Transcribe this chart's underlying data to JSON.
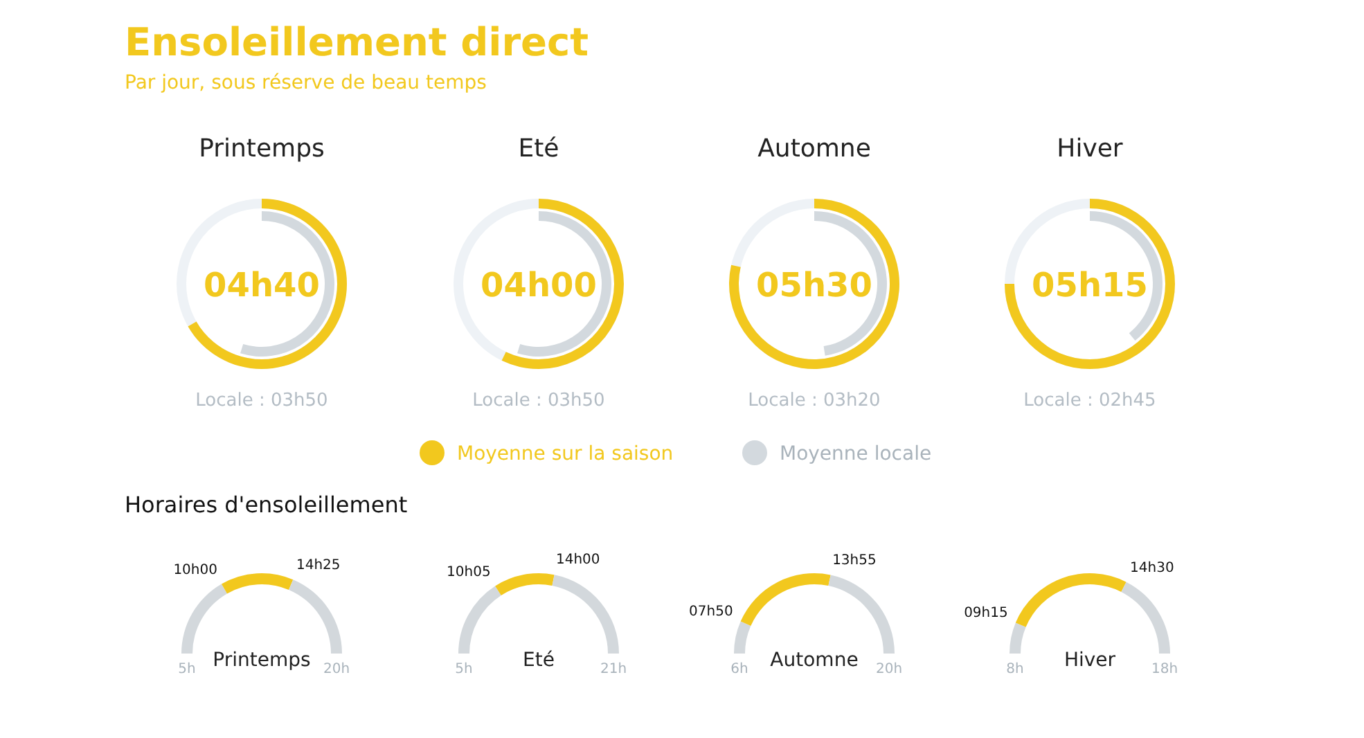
{
  "chart_data": [
    {
      "type": "other",
      "title": "Ensoleillement direct",
      "subtitle": "Par jour, sous réserve de beau temps",
      "legend": "bottom",
      "series": [
        {
          "name": "Moyenne sur la saison",
          "color": "#f2c81e"
        },
        {
          "name": "Moyenne locale",
          "color": "#d3d9de"
        }
      ]
    },
    {
      "type": "other",
      "title": "Printemps",
      "annotations": [
        "04h40",
        "Locale : 03h50"
      ]
    },
    {
      "type": "other",
      "title": "Eté",
      "annotations": [
        "04h00",
        "Locale : 03h50"
      ]
    },
    {
      "type": "other",
      "title": "Automne",
      "annotations": [
        "05h30",
        "Locale : 03h20"
      ]
    },
    {
      "type": "other",
      "title": "Hiver",
      "annotations": [
        "05h15",
        "Locale : 02h45"
      ]
    },
    {
      "type": "donut",
      "title": "Horaires d'ensoleillement",
      "xlabel": "Printemps",
      "categories": [
        null,
        null,
        null
      ],
      "values": [
        33.33,
        29.44,
        37.23
      ],
      "colors": [
        "#d3d8dc",
        "#f2c81e",
        "#d3d8dc"
      ],
      "annotations": [
        "5h",
        "10h00",
        "14h25",
        "20h"
      ]
    },
    {
      "type": "donut",
      "xlabel": "Eté",
      "categories": [
        null,
        null,
        null
      ],
      "values": [
        31.77,
        24.48,
        43.75
      ],
      "colors": [
        "#d3d8dc",
        "#f2c81e",
        "#d3d8dc"
      ],
      "annotations": [
        "5h",
        "10h05",
        "14h00",
        "21h"
      ]
    },
    {
      "type": "donut",
      "xlabel": "Automne",
      "categories": [
        null,
        null,
        null
      ],
      "values": [
        13.1,
        43.45,
        43.45
      ],
      "colors": [
        "#d3d8dc",
        "#f2c81e",
        "#d3d8dc"
      ],
      "annotations": [
        "6h",
        "07h50",
        "13h55",
        "20h"
      ]
    },
    {
      "type": "donut",
      "xlabel": "Hiver",
      "categories": [
        null,
        null,
        null
      ],
      "values": [
        12.5,
        52.5,
        35
      ],
      "colors": [
        "#d3d8dc",
        "#f2c81e",
        "#d3d8dc"
      ],
      "annotations": [
        "8h",
        "09h15",
        "14h30",
        "18h"
      ]
    }
  ]
}
